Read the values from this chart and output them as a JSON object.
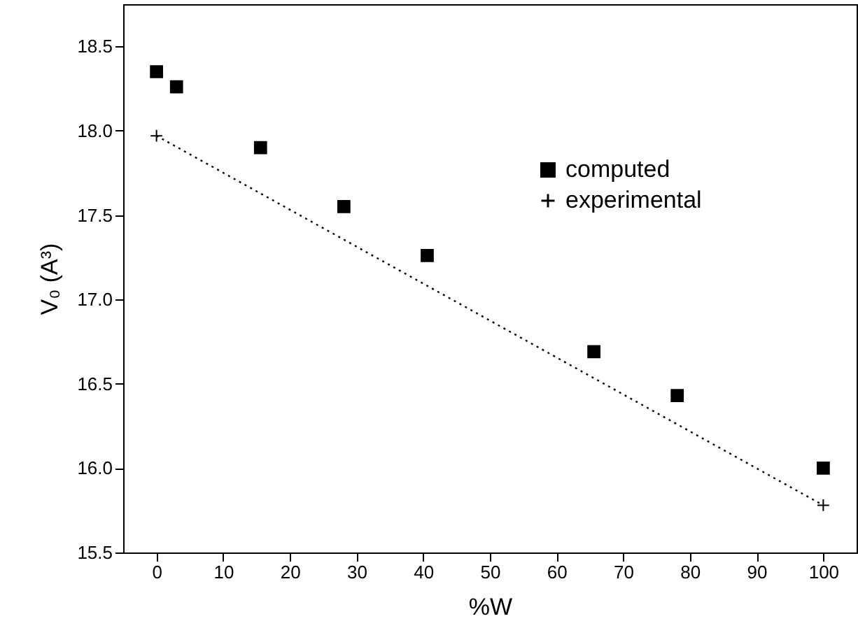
{
  "chart_data": {
    "type": "scatter",
    "xlabel": "%W",
    "ylabel": "V₀ (A³)",
    "xlim": [
      -5,
      105
    ],
    "xticks": [
      0,
      10,
      20,
      30,
      40,
      50,
      60,
      70,
      80,
      90,
      100
    ],
    "ylim": [
      15.5,
      18.75
    ],
    "yticks": [
      15.5,
      {
        "value": 16,
        "label": "16.0"
      },
      16.5,
      {
        "value": 17,
        "label": "17.0"
      },
      17.5,
      {
        "value": 18,
        "label": "18.0"
      },
      18.5
    ],
    "legend": "top right",
    "grid": false,
    "series": [
      {
        "name": "computed",
        "color": "#000000",
        "marker": "square",
        "x": [
          0,
          3,
          15.6,
          28.1,
          40.6,
          65.6,
          78.1,
          100
        ],
        "values": [
          18.35,
          18.26,
          17.9,
          17.55,
          17.26,
          16.69,
          16.43,
          16.0
        ]
      },
      {
        "name": "experimental",
        "type": "line",
        "color": "#000000",
        "marker": "cross",
        "line_style": "dotted",
        "x": [
          0,
          100
        ],
        "values": [
          17.97,
          15.78
        ]
      }
    ]
  }
}
